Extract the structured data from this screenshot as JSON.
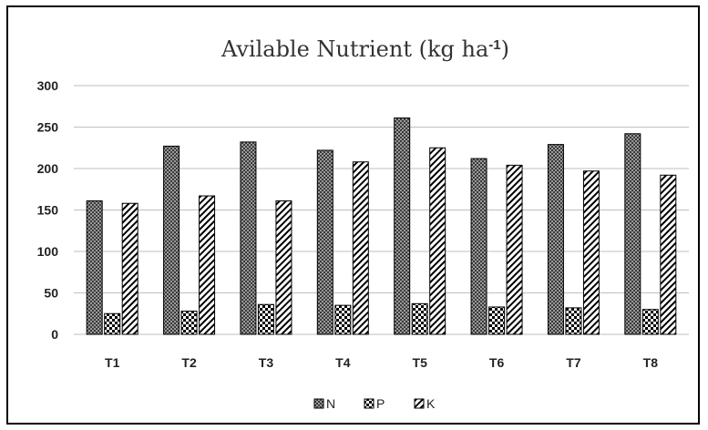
{
  "chart_data": {
    "type": "bar",
    "title": "Avilable Nutrient (kg ha",
    "title_superscript": "-1",
    "title_suffix": ")",
    "xlabel": "",
    "ylabel": "",
    "categories": [
      "T1",
      "T2",
      "T3",
      "T4",
      "T5",
      "T6",
      "T7",
      "T8"
    ],
    "series": [
      {
        "name": "N",
        "values": [
          161,
          227,
          232,
          222,
          261,
          212,
          229,
          242
        ]
      },
      {
        "name": "P",
        "values": [
          25,
          28,
          36,
          35,
          37,
          33,
          32,
          30
        ]
      },
      {
        "name": "K",
        "values": [
          158,
          167,
          161,
          208,
          225,
          204,
          197,
          192
        ]
      }
    ],
    "ylim": [
      0,
      300
    ],
    "yticks": [
      0,
      50,
      100,
      150,
      200,
      250,
      300
    ],
    "grid": true,
    "legend_position": "bottom",
    "colors": {
      "bar_fill": "#d9d9d9",
      "bar_stroke": "#000000",
      "grid": "#bfbfbf",
      "pattern_ink": "#000000"
    }
  }
}
